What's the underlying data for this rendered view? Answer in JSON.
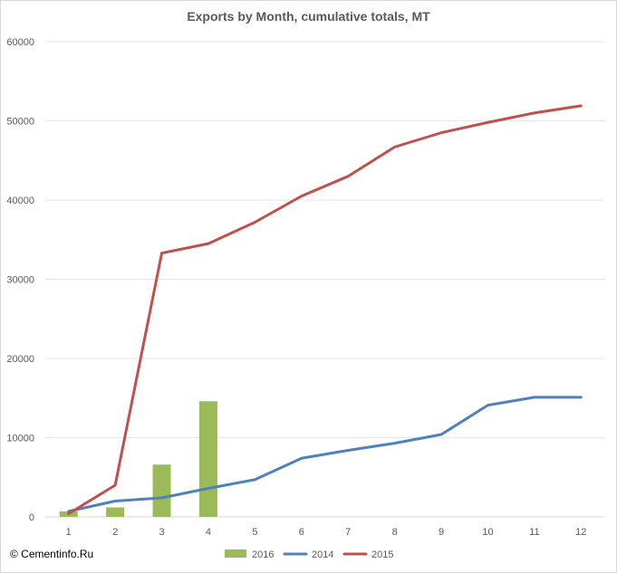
{
  "copyright": "© Cementinfo.Ru",
  "chart_data": {
    "type": "bar+line",
    "title": "Exports by Month, cumulative totals, MT",
    "xlabel": "",
    "ylabel": "",
    "categories": [
      "1",
      "2",
      "3",
      "4",
      "5",
      "6",
      "7",
      "8",
      "9",
      "10",
      "11",
      "12"
    ],
    "ylim": [
      0,
      60000
    ],
    "yticks": [
      0,
      10000,
      20000,
      30000,
      40000,
      50000,
      60000
    ],
    "grid": true,
    "legend_position": "bottom",
    "series": [
      {
        "name": "2016",
        "kind": "bar",
        "color": "#9bbb59",
        "values": [
          700,
          1200,
          6600,
          14600,
          null,
          null,
          null,
          null,
          null,
          null,
          null,
          null
        ]
      },
      {
        "name": "2014",
        "kind": "line",
        "color": "#4f81bd",
        "values": [
          700,
          2000,
          2400,
          3600,
          4700,
          7400,
          8400,
          9300,
          10400,
          14100,
          15100,
          15100
        ]
      },
      {
        "name": "2015",
        "kind": "line",
        "color": "#c0504d",
        "values": [
          400,
          4000,
          33300,
          34500,
          37200,
          40500,
          43000,
          46700,
          48500,
          49800,
          51000,
          51900
        ]
      }
    ]
  }
}
